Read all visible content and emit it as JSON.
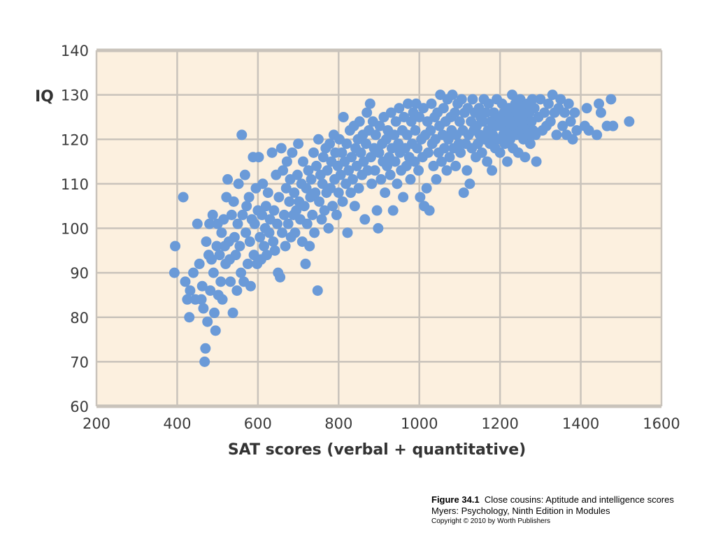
{
  "chart_data": {
    "type": "scatter",
    "xlabel": "SAT scores (verbal + quantitative)",
    "ylabel": "IQ",
    "xlim": [
      200,
      1600
    ],
    "ylim": [
      60,
      140
    ],
    "x_ticks": [
      "200",
      "400",
      "600",
      "800",
      "1000",
      "1200",
      "1400",
      "1600"
    ],
    "y_ticks": [
      "60",
      "70",
      "80",
      "90",
      "100",
      "110",
      "120",
      "130",
      "140"
    ],
    "grid": true,
    "background_color": "#fcf0df",
    "grid_color": "#c9c3bb",
    "point_color": "#6a9ad8",
    "points": [
      [
        395,
        96
      ],
      [
        393,
        90
      ],
      [
        415,
        107
      ],
      [
        420,
        88
      ],
      [
        425,
        84
      ],
      [
        430,
        80
      ],
      [
        432,
        86
      ],
      [
        440,
        90
      ],
      [
        445,
        84
      ],
      [
        450,
        101
      ],
      [
        455,
        92
      ],
      [
        460,
        84
      ],
      [
        462,
        87
      ],
      [
        465,
        82
      ],
      [
        468,
        70
      ],
      [
        470,
        73
      ],
      [
        472,
        97
      ],
      [
        475,
        79
      ],
      [
        478,
        94
      ],
      [
        480,
        101
      ],
      [
        482,
        86
      ],
      [
        485,
        93
      ],
      [
        488,
        103
      ],
      [
        490,
        90
      ],
      [
        492,
        81
      ],
      [
        495,
        77
      ],
      [
        498,
        96
      ],
      [
        500,
        101
      ],
      [
        502,
        85
      ],
      [
        505,
        94
      ],
      [
        508,
        88
      ],
      [
        510,
        99
      ],
      [
        512,
        84
      ],
      [
        515,
        102
      ],
      [
        518,
        96
      ],
      [
        520,
        92
      ],
      [
        522,
        107
      ],
      [
        525,
        111
      ],
      [
        528,
        97
      ],
      [
        530,
        93
      ],
      [
        532,
        88
      ],
      [
        535,
        103
      ],
      [
        538,
        81
      ],
      [
        540,
        106
      ],
      [
        542,
        98
      ],
      [
        545,
        94
      ],
      [
        548,
        86
      ],
      [
        550,
        101
      ],
      [
        552,
        110
      ],
      [
        555,
        96
      ],
      [
        558,
        90
      ],
      [
        560,
        121
      ],
      [
        562,
        103
      ],
      [
        565,
        88
      ],
      [
        568,
        112
      ],
      [
        570,
        99
      ],
      [
        572,
        105
      ],
      [
        575,
        92
      ],
      [
        578,
        107
      ],
      [
        580,
        97
      ],
      [
        582,
        87
      ],
      [
        585,
        102
      ],
      [
        588,
        116
      ],
      [
        590,
        94
      ],
      [
        592,
        101
      ],
      [
        595,
        109
      ],
      [
        598,
        92
      ],
      [
        600,
        104
      ],
      [
        602,
        116
      ],
      [
        605,
        98
      ],
      [
        608,
        93
      ],
      [
        610,
        103
      ],
      [
        612,
        110
      ],
      [
        615,
        96
      ],
      [
        618,
        100
      ],
      [
        620,
        105
      ],
      [
        622,
        94
      ],
      [
        625,
        108
      ],
      [
        628,
        99
      ],
      [
        630,
        102
      ],
      [
        635,
        117
      ],
      [
        638,
        97
      ],
      [
        640,
        104
      ],
      [
        642,
        95
      ],
      [
        645,
        112
      ],
      [
        648,
        101
      ],
      [
        650,
        90
      ],
      [
        652,
        107
      ],
      [
        655,
        89
      ],
      [
        658,
        118
      ],
      [
        660,
        99
      ],
      [
        662,
        113
      ],
      [
        665,
        103
      ],
      [
        668,
        96
      ],
      [
        670,
        109
      ],
      [
        672,
        115
      ],
      [
        675,
        101
      ],
      [
        678,
        106
      ],
      [
        680,
        111
      ],
      [
        682,
        98
      ],
      [
        685,
        117
      ],
      [
        688,
        103
      ],
      [
        690,
        108
      ],
      [
        692,
        99
      ],
      [
        695,
        104
      ],
      [
        698,
        112
      ],
      [
        700,
        119
      ],
      [
        702,
        106
      ],
      [
        705,
        102
      ],
      [
        708,
        110
      ],
      [
        710,
        97
      ],
      [
        712,
        115
      ],
      [
        715,
        105
      ],
      [
        718,
        92
      ],
      [
        720,
        109
      ],
      [
        722,
        101
      ],
      [
        725,
        113
      ],
      [
        728,
        96
      ],
      [
        730,
        107
      ],
      [
        732,
        111
      ],
      [
        735,
        103
      ],
      [
        738,
        117
      ],
      [
        740,
        99
      ],
      [
        742,
        108
      ],
      [
        745,
        114
      ],
      [
        748,
        86
      ],
      [
        750,
        120
      ],
      [
        752,
        106
      ],
      [
        755,
        112
      ],
      [
        758,
        102
      ],
      [
        760,
        110
      ],
      [
        762,
        116
      ],
      [
        765,
        104
      ],
      [
        768,
        118
      ],
      [
        770,
        108
      ],
      [
        772,
        113
      ],
      [
        775,
        100
      ],
      [
        778,
        119
      ],
      [
        780,
        109
      ],
      [
        782,
        115
      ],
      [
        785,
        105
      ],
      [
        788,
        121
      ],
      [
        790,
        111
      ],
      [
        792,
        117
      ],
      [
        795,
        103
      ],
      [
        798,
        114
      ],
      [
        800,
        108
      ],
      [
        802,
        120
      ],
      [
        805,
        112
      ],
      [
        808,
        117
      ],
      [
        810,
        106
      ],
      [
        812,
        125
      ],
      [
        815,
        115
      ],
      [
        818,
        110
      ],
      [
        820,
        119
      ],
      [
        822,
        99
      ],
      [
        825,
        113
      ],
      [
        828,
        122
      ],
      [
        830,
        108
      ],
      [
        832,
        116
      ],
      [
        835,
        111
      ],
      [
        838,
        123
      ],
      [
        840,
        105
      ],
      [
        842,
        118
      ],
      [
        845,
        114
      ],
      [
        848,
        120
      ],
      [
        850,
        109
      ],
      [
        852,
        124
      ],
      [
        855,
        117
      ],
      [
        858,
        112
      ],
      [
        860,
        121
      ],
      [
        862,
        115
      ],
      [
        865,
        102
      ],
      [
        868,
        119
      ],
      [
        870,
        126
      ],
      [
        872,
        113
      ],
      [
        875,
        122
      ],
      [
        878,
        128
      ],
      [
        880,
        116
      ],
      [
        882,
        110
      ],
      [
        885,
        124
      ],
      [
        888,
        118
      ],
      [
        890,
        113
      ],
      [
        892,
        121
      ],
      [
        895,
        104
      ],
      [
        898,
        100
      ],
      [
        900,
        117
      ],
      [
        902,
        123
      ],
      [
        905,
        111
      ],
      [
        908,
        119
      ],
      [
        910,
        115
      ],
      [
        912,
        125
      ],
      [
        915,
        108
      ],
      [
        918,
        120
      ],
      [
        920,
        114
      ],
      [
        922,
        122
      ],
      [
        925,
        116
      ],
      [
        928,
        112
      ],
      [
        930,
        126
      ],
      [
        932,
        118
      ],
      [
        935,
        104
      ],
      [
        938,
        121
      ],
      [
        940,
        115
      ],
      [
        942,
        124
      ],
      [
        945,
        110
      ],
      [
        948,
        119
      ],
      [
        950,
        127
      ],
      [
        952,
        117
      ],
      [
        955,
        113
      ],
      [
        958,
        122
      ],
      [
        960,
        107
      ],
      [
        962,
        125
      ],
      [
        965,
        118
      ],
      [
        968,
        114
      ],
      [
        970,
        121
      ],
      [
        972,
        128
      ],
      [
        975,
        116
      ],
      [
        978,
        111
      ],
      [
        980,
        124
      ],
      [
        982,
        119
      ],
      [
        985,
        126
      ],
      [
        988,
        115
      ],
      [
        990,
        122
      ],
      [
        992,
        128
      ],
      [
        995,
        118
      ],
      [
        998,
        113
      ],
      [
        1000,
        125
      ],
      [
        1002,
        107
      ],
      [
        1005,
        120
      ],
      [
        1008,
        116
      ],
      [
        1010,
        127
      ],
      [
        1012,
        105
      ],
      [
        1015,
        121
      ],
      [
        1018,
        109
      ],
      [
        1020,
        124
      ],
      [
        1022,
        117
      ],
      [
        1025,
        104
      ],
      [
        1028,
        122
      ],
      [
        1030,
        128
      ],
      [
        1032,
        119
      ],
      [
        1035,
        114
      ],
      [
        1038,
        125
      ],
      [
        1040,
        120
      ],
      [
        1042,
        111
      ],
      [
        1045,
        126
      ],
      [
        1048,
        117
      ],
      [
        1050,
        123
      ],
      [
        1052,
        130
      ],
      [
        1055,
        115
      ],
      [
        1058,
        121
      ],
      [
        1060,
        127
      ],
      [
        1062,
        118
      ],
      [
        1065,
        124
      ],
      [
        1068,
        113
      ],
      [
        1070,
        129
      ],
      [
        1072,
        120
      ],
      [
        1075,
        116
      ],
      [
        1078,
        125
      ],
      [
        1080,
        122
      ],
      [
        1082,
        130
      ],
      [
        1085,
        118
      ],
      [
        1088,
        126
      ],
      [
        1090,
        114
      ],
      [
        1092,
        121
      ],
      [
        1095,
        128
      ],
      [
        1098,
        119
      ],
      [
        1100,
        124
      ],
      [
        1102,
        117
      ],
      [
        1105,
        129
      ],
      [
        1108,
        122
      ],
      [
        1110,
        108
      ],
      [
        1112,
        126
      ],
      [
        1115,
        119
      ],
      [
        1118,
        113
      ],
      [
        1120,
        127
      ],
      [
        1122,
        121
      ],
      [
        1125,
        110
      ],
      [
        1128,
        124
      ],
      [
        1130,
        118
      ],
      [
        1132,
        129
      ],
      [
        1135,
        122
      ],
      [
        1138,
        126
      ],
      [
        1140,
        116
      ],
      [
        1142,
        123
      ],
      [
        1145,
        119
      ],
      [
        1148,
        127
      ],
      [
        1150,
        121
      ],
      [
        1152,
        125
      ],
      [
        1155,
        117
      ],
      [
        1158,
        124
      ],
      [
        1160,
        129
      ],
      [
        1162,
        120
      ],
      [
        1165,
        126
      ],
      [
        1168,
        115
      ],
      [
        1170,
        122
      ],
      [
        1172,
        128
      ],
      [
        1175,
        119
      ],
      [
        1178,
        124
      ],
      [
        1180,
        113
      ],
      [
        1182,
        121
      ],
      [
        1185,
        126
      ],
      [
        1188,
        118
      ],
      [
        1190,
        123
      ],
      [
        1192,
        129
      ],
      [
        1195,
        120
      ],
      [
        1198,
        125
      ],
      [
        1200,
        117
      ],
      [
        1202,
        123
      ],
      [
        1205,
        128
      ],
      [
        1208,
        121
      ],
      [
        1210,
        126
      ],
      [
        1212,
        119
      ],
      [
        1215,
        124
      ],
      [
        1218,
        115
      ],
      [
        1220,
        122
      ],
      [
        1222,
        127
      ],
      [
        1225,
        120
      ],
      [
        1228,
        125
      ],
      [
        1230,
        130
      ],
      [
        1232,
        118
      ],
      [
        1235,
        123
      ],
      [
        1238,
        128
      ],
      [
        1240,
        121
      ],
      [
        1242,
        126
      ],
      [
        1245,
        117
      ],
      [
        1248,
        124
      ],
      [
        1250,
        129
      ],
      [
        1252,
        122
      ],
      [
        1255,
        127
      ],
      [
        1258,
        120
      ],
      [
        1260,
        125
      ],
      [
        1262,
        116
      ],
      [
        1265,
        123
      ],
      [
        1268,
        128
      ],
      [
        1270,
        121
      ],
      [
        1272,
        126
      ],
      [
        1275,
        119
      ],
      [
        1278,
        124
      ],
      [
        1280,
        129
      ],
      [
        1282,
        122
      ],
      [
        1285,
        127
      ],
      [
        1288,
        121
      ],
      [
        1290,
        115
      ],
      [
        1295,
        125
      ],
      [
        1300,
        129
      ],
      [
        1305,
        122
      ],
      [
        1310,
        126
      ],
      [
        1315,
        123
      ],
      [
        1320,
        128
      ],
      [
        1325,
        124
      ],
      [
        1330,
        130
      ],
      [
        1335,
        126
      ],
      [
        1340,
        121
      ],
      [
        1345,
        127
      ],
      [
        1350,
        129
      ],
      [
        1355,
        123
      ],
      [
        1360,
        126
      ],
      [
        1365,
        121
      ],
      [
        1370,
        128
      ],
      [
        1375,
        124
      ],
      [
        1380,
        120
      ],
      [
        1385,
        126
      ],
      [
        1390,
        122
      ],
      [
        1410,
        123
      ],
      [
        1415,
        127
      ],
      [
        1420,
        122
      ],
      [
        1440,
        121
      ],
      [
        1445,
        128
      ],
      [
        1450,
        126
      ],
      [
        1465,
        123
      ],
      [
        1475,
        129
      ],
      [
        1480,
        123
      ],
      [
        1520,
        124
      ]
    ]
  },
  "caption": {
    "figure_label": "Figure 34.1",
    "title": "Close cousins: Aptitude and intelligence scores",
    "source": "Myers: Psychology, Ninth Edition in Modules",
    "copyright": "Copyright © 2010 by Worth Publishers"
  }
}
